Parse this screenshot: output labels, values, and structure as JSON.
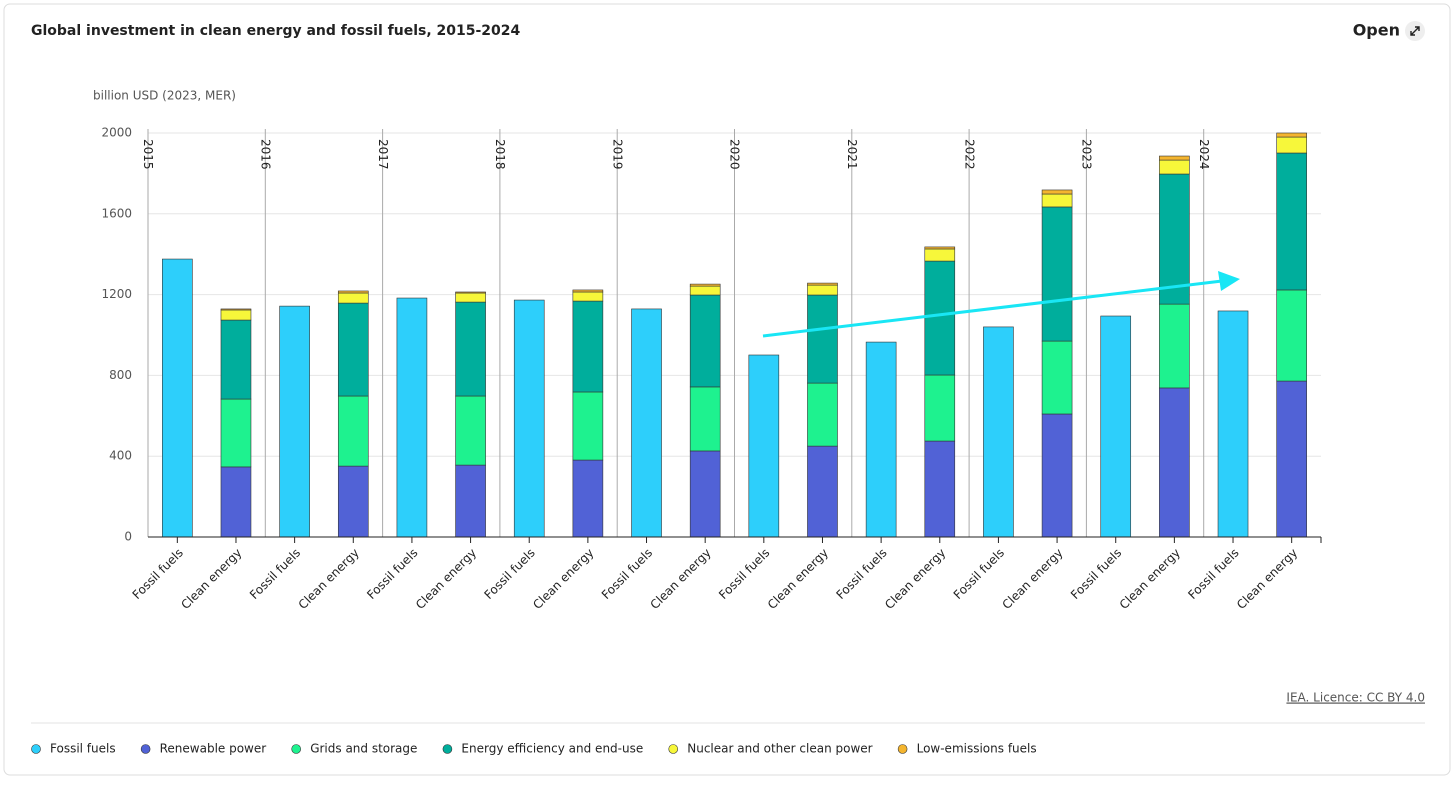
{
  "chart_data": {
    "type": "stacked_bar",
    "title": "Global investment in clean energy and fossil fuels, 2015-2024",
    "open_label": "Open",
    "y_label": "billion USD (2023, MER)",
    "source": "IEA. Licence: CC BY 4.0",
    "groups": [
      "2015",
      "2016",
      "2017",
      "2018",
      "2019",
      "2020",
      "2021",
      "2022",
      "2023",
      "2024"
    ],
    "categories": [
      "Fossil fuels",
      "Clean energy",
      "Fossil fuels",
      "Clean energy",
      "Fossil fuels",
      "Clean energy",
      "Fossil fuels",
      "Clean energy",
      "Fossil fuels",
      "Clean energy",
      "Fossil fuels",
      "Clean energy",
      "Fossil fuels",
      "Clean energy",
      "Fossil fuels",
      "Clean energy",
      "Fossil fuels",
      "Clean energy",
      "Fossil fuels",
      "Clean energy"
    ],
    "series": [
      {
        "name": "Fossil fuels",
        "color": "#2dcffb",
        "values": [
          1376,
          null,
          1143,
          null,
          1183,
          null,
          1173,
          null,
          1129,
          null,
          901,
          null,
          965,
          null,
          1040,
          null,
          1094,
          null,
          1119,
          null
        ]
      },
      {
        "name": "Renewable power",
        "color": "#5162d6",
        "values": [
          null,
          347,
          null,
          351,
          null,
          356,
          null,
          381,
          null,
          426,
          null,
          450,
          null,
          475,
          null,
          609,
          null,
          738,
          null,
          772
        ]
      },
      {
        "name": "Grids and storage",
        "color": "#1ef28f",
        "values": [
          null,
          336,
          null,
          347,
          null,
          342,
          null,
          337,
          null,
          317,
          null,
          312,
          null,
          327,
          null,
          361,
          null,
          415,
          null,
          451
        ]
      },
      {
        "name": "Energy efficiency and end-use",
        "color": "#00ae9c",
        "values": [
          null,
          391,
          null,
          460,
          null,
          465,
          null,
          450,
          null,
          455,
          null,
          436,
          null,
          564,
          null,
          664,
          null,
          644,
          null,
          678
        ]
      },
      {
        "name": "Nuclear and other clean power",
        "color": "#f7f73a",
        "values": [
          null,
          50,
          null,
          50,
          null,
          45,
          null,
          45,
          null,
          44,
          null,
          49,
          null,
          60,
          null,
          64,
          null,
          69,
          null,
          79
        ]
      },
      {
        "name": "Low-emissions fuels",
        "color": "#f4b52f",
        "values": [
          null,
          5,
          null,
          10,
          null,
          5,
          null,
          10,
          null,
          10,
          null,
          10,
          null,
          10,
          null,
          20,
          null,
          20,
          null,
          20
        ]
      }
    ],
    "ylim": [
      0,
      2000
    ],
    "yticks": [
      0,
      400,
      800,
      1200,
      1600,
      2000
    ],
    "grid": true
  }
}
